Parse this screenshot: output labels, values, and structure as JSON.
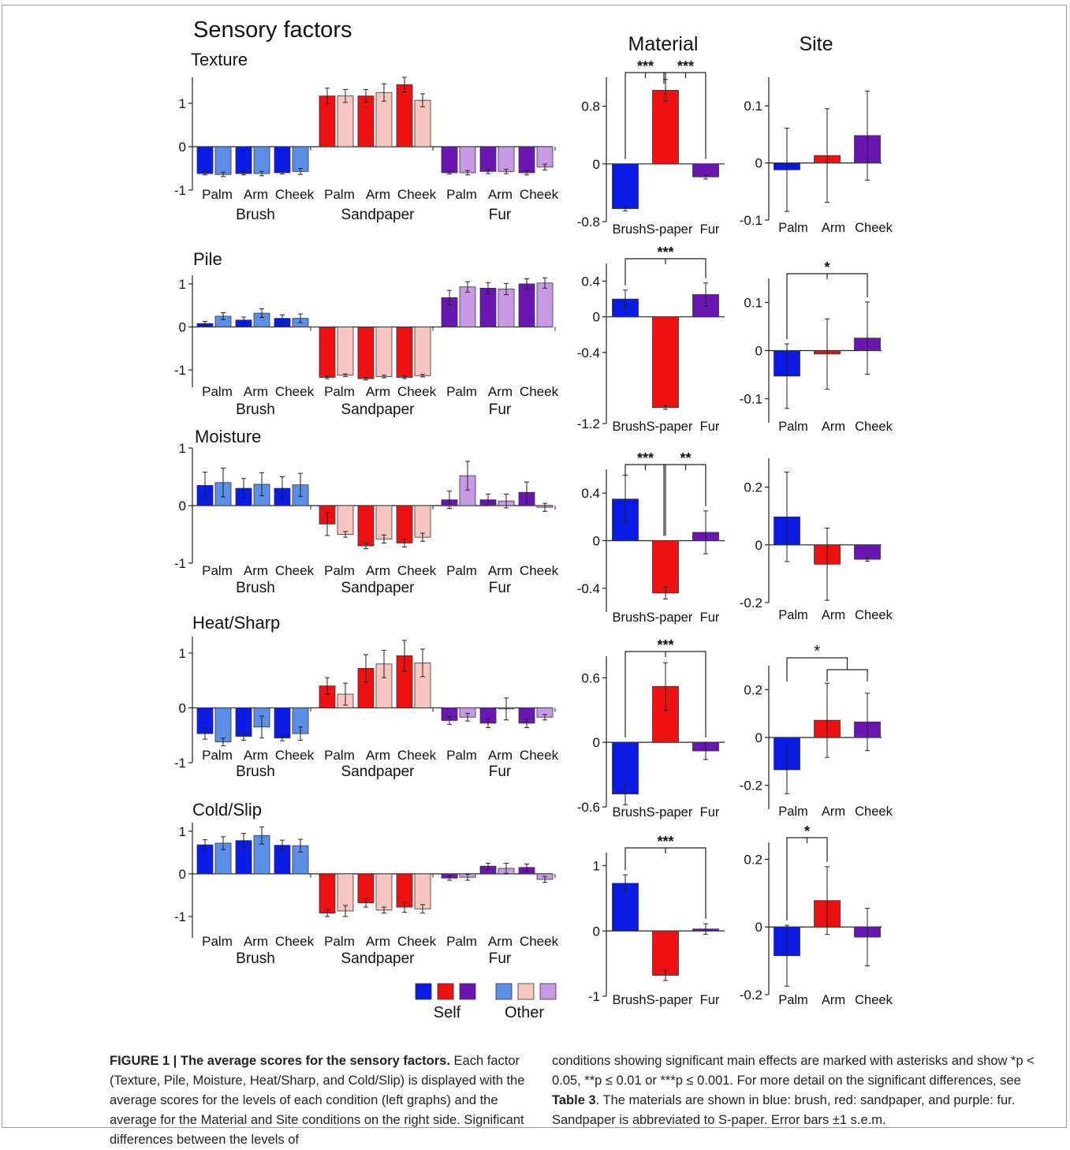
{
  "main_title": "Sensory factors",
  "column_titles": {
    "material": "Material",
    "site": "Site"
  },
  "condition_labels": {
    "sites": [
      "Palm",
      "Arm",
      "Cheek"
    ],
    "materials": [
      "Brush",
      "Sandpaper",
      "Fur"
    ]
  },
  "material_tick_labels": [
    "Brush",
    "S-paper",
    "Fur"
  ],
  "legend": {
    "self_label": "Self",
    "other_label": "Other"
  },
  "colors": {
    "brush_self": "#0a1be6",
    "brush_other": "#5b8ee6",
    "sandpaper_self": "#ee1111",
    "sandpaper_other": "#f7c6c0",
    "fur_self": "#6a16b2",
    "fur_other": "#c89ae6"
  },
  "caption": {
    "figure_label": "FIGURE 1 | The average scores for the sensory factors.",
    "left_text": "Each factor (Texture, Pile, Moisture, Heat/Sharp, and Cold/Slip) is displayed with the average scores for the levels of each condition (left graphs) and the average for the Material and Site conditions on the right side. Significant differences between the levels of",
    "right_text_1": "conditions showing significant main effects are marked with asterisks and show *p < 0.05, **p ≤ 0.01 or ***p ≤ 0.001. For more detail on the significant differences, see",
    "table_ref": "Table 3",
    "right_text_2": ". The materials are shown in blue: brush, red: sandpaper, and purple: fur. Sandpaper is abbreviated to S-paper. Error bars ±1 s.e.m."
  },
  "chart_data": [
    {
      "factor": "Texture",
      "left": {
        "type": "bar",
        "ylim": [
          -1,
          1.6
        ],
        "yticks": [
          "1",
          "0",
          "-1"
        ],
        "tick_values": [
          1,
          0,
          -1
        ],
        "series_order": [
          "Brush Palm Self",
          "Brush Palm Other",
          "Brush Arm Self",
          "Brush Arm Other",
          "Brush Cheek Self",
          "Brush Cheek Other",
          "Sandpaper Palm Self",
          "Sandpaper Palm Other",
          "Sandpaper Arm Self",
          "Sandpaper Arm Other",
          "Sandpaper Cheek Self",
          "Sandpaper Cheek Other",
          "Fur Palm Self",
          "Fur Palm Other",
          "Fur Arm Self",
          "Fur Arm Other",
          "Fur Cheek Self",
          "Fur Cheek Other"
        ],
        "values": [
          -0.62,
          -0.64,
          -0.62,
          -0.62,
          -0.6,
          -0.57,
          1.17,
          1.17,
          1.17,
          1.25,
          1.43,
          1.07,
          -0.6,
          -0.6,
          -0.57,
          -0.57,
          -0.6,
          -0.47
        ],
        "errors": [
          0.03,
          0.05,
          0.03,
          0.05,
          0.03,
          0.07,
          0.18,
          0.15,
          0.15,
          0.2,
          0.17,
          0.15,
          0.03,
          0.05,
          0.05,
          0.05,
          0.05,
          0.07
        ]
      },
      "material": {
        "type": "bar",
        "ylim": [
          -0.8,
          1.2
        ],
        "yticks": [
          "0.8",
          "0",
          "-0.8"
        ],
        "tick_values": [
          0.8,
          0,
          -0.8
        ],
        "categories": [
          "Brush",
          "S-paper",
          "Fur"
        ],
        "values": [
          -0.62,
          1.02,
          -0.18
        ],
        "errors": [
          0.03,
          0.15,
          0.03
        ],
        "significance": [
          {
            "from": 0,
            "to": 1,
            "label": "***"
          },
          {
            "from": 1,
            "to": 2,
            "label": "***"
          }
        ]
      },
      "site": {
        "type": "bar",
        "ylim": [
          -0.1,
          0.15
        ],
        "yticks": [
          "0.1",
          "0",
          "-0.1"
        ],
        "tick_values": [
          0.1,
          0,
          -0.1
        ],
        "categories": [
          "Palm",
          "Arm",
          "Cheek"
        ],
        "values": [
          -0.012,
          0.013,
          0.048
        ],
        "errors": [
          0.073,
          0.082,
          0.078
        ],
        "significance": []
      }
    },
    {
      "factor": "Pile",
      "left": {
        "type": "bar",
        "ylim": [
          -1.4,
          1.2
        ],
        "yticks": [
          "1",
          "0",
          "-1"
        ],
        "tick_values": [
          1,
          0,
          -1
        ],
        "values": [
          0.08,
          0.25,
          0.16,
          0.32,
          0.2,
          0.2,
          -1.17,
          -1.12,
          -1.2,
          -1.15,
          -1.17,
          -1.13,
          0.68,
          0.93,
          0.9,
          0.88,
          1.0,
          1.02
        ],
        "errors": [
          0.05,
          0.08,
          0.07,
          0.1,
          0.08,
          0.1,
          0.03,
          0.03,
          0.03,
          0.03,
          0.03,
          0.03,
          0.17,
          0.12,
          0.13,
          0.13,
          0.12,
          0.12
        ]
      },
      "material": {
        "type": "bar",
        "ylim": [
          -1.2,
          0.6
        ],
        "yticks": [
          "0.4",
          "0",
          "-0.4",
          "-1.2"
        ],
        "tick_values": [
          0.4,
          0,
          -0.4,
          -1.2
        ],
        "categories": [
          "Brush",
          "S-paper",
          "Fur"
        ],
        "values": [
          0.2,
          -1.02,
          0.25
        ],
        "errors": [
          0.1,
          0.02,
          0.13
        ],
        "significance": [
          {
            "from": 0,
            "to": 2,
            "label": "***"
          }
        ]
      },
      "site": {
        "type": "bar",
        "ylim": [
          -0.15,
          0.15
        ],
        "yticks": [
          "0.1",
          "0",
          "-0.1"
        ],
        "tick_values": [
          0.1,
          0,
          -0.1
        ],
        "categories": [
          "Palm",
          "Arm",
          "Cheek"
        ],
        "values": [
          -0.053,
          -0.007,
          0.026
        ],
        "errors": [
          0.067,
          0.073,
          0.075
        ],
        "significance": [
          {
            "from": 0,
            "to": 2,
            "label": "*"
          }
        ]
      }
    },
    {
      "factor": "Moisture",
      "left": {
        "type": "bar",
        "ylim": [
          -1,
          1
        ],
        "yticks": [
          "1",
          "0",
          "-1"
        ],
        "tick_values": [
          1,
          0,
          -1
        ],
        "values": [
          0.35,
          0.4,
          0.3,
          0.37,
          0.3,
          0.36,
          -0.32,
          -0.5,
          -0.7,
          -0.58,
          -0.65,
          -0.55,
          0.1,
          0.52,
          0.1,
          0.08,
          0.23,
          -0.03
        ],
        "errors": [
          0.23,
          0.25,
          0.17,
          0.2,
          0.2,
          0.2,
          0.2,
          0.05,
          0.05,
          0.07,
          0.07,
          0.07,
          0.15,
          0.25,
          0.1,
          0.12,
          0.18,
          0.07
        ]
      },
      "material": {
        "type": "bar",
        "ylim": [
          -0.6,
          0.6
        ],
        "yticks": [
          "0.4",
          "0",
          "-0.4"
        ],
        "tick_values": [
          0.4,
          0,
          -0.4
        ],
        "categories": [
          "Brush",
          "S-paper",
          "Fur"
        ],
        "values": [
          0.35,
          -0.44,
          0.07
        ],
        "errors": [
          0.2,
          0.05,
          0.18
        ],
        "significance": [
          {
            "from": 0,
            "to": 1,
            "label": "***"
          },
          {
            "from": 1,
            "to": 2,
            "label": "**"
          }
        ]
      },
      "site": {
        "type": "bar",
        "ylim": [
          -0.2,
          0.3
        ],
        "yticks": [
          "0.2",
          "0",
          "-0.2"
        ],
        "tick_values": [
          0.2,
          0,
          -0.2
        ],
        "categories": [
          "Palm",
          "Arm",
          "Cheek"
        ],
        "values": [
          0.097,
          -0.067,
          -0.05
        ],
        "errors": [
          0.155,
          0.125,
          0.007
        ],
        "significance": []
      }
    },
    {
      "factor": "Heat/Sharp",
      "left": {
        "type": "bar",
        "ylim": [
          -1,
          1.3
        ],
        "yticks": [
          "1",
          "0",
          "-1"
        ],
        "tick_values": [
          1,
          0,
          -1
        ],
        "values": [
          -0.47,
          -0.62,
          -0.52,
          -0.35,
          -0.55,
          -0.47,
          0.4,
          0.25,
          0.72,
          0.8,
          0.95,
          0.82,
          -0.23,
          -0.17,
          -0.28,
          -0.02,
          -0.28,
          -0.17
        ],
        "errors": [
          0.1,
          0.07,
          0.07,
          0.2,
          0.05,
          0.12,
          0.15,
          0.2,
          0.25,
          0.25,
          0.28,
          0.25,
          0.07,
          0.07,
          0.08,
          0.2,
          0.08,
          0.05
        ]
      },
      "material": {
        "type": "bar",
        "ylim": [
          -0.6,
          0.8
        ],
        "yticks": [
          "0.6",
          "0",
          "-0.6"
        ],
        "tick_values": [
          0.6,
          0,
          -0.6
        ],
        "categories": [
          "Brush",
          "S-paper",
          "Fur"
        ],
        "values": [
          -0.48,
          0.52,
          -0.08
        ],
        "errors": [
          0.1,
          0.22,
          0.08
        ],
        "significance": [
          {
            "from": 0,
            "to": 2,
            "label": "***"
          }
        ]
      },
      "site": {
        "type": "bar",
        "ylim": [
          -0.3,
          0.3
        ],
        "yticks": [
          "0.2",
          "0",
          "-0.2"
        ],
        "tick_values": [
          0.2,
          0,
          -0.2
        ],
        "categories": [
          "Palm",
          "Arm",
          "Cheek"
        ],
        "values": [
          -0.135,
          0.072,
          0.065
        ],
        "errors": [
          0.1,
          0.155,
          0.12
        ],
        "significance": [
          {
            "from": 0,
            "to": "1-2",
            "label": "*"
          }
        ]
      }
    },
    {
      "factor": "Cold/Slip",
      "left": {
        "type": "bar",
        "ylim": [
          -1.5,
          1.2
        ],
        "yticks": [
          "1",
          "0",
          "-1"
        ],
        "tick_values": [
          1,
          0,
          -1
        ],
        "values": [
          0.68,
          0.72,
          0.78,
          0.9,
          0.67,
          0.66,
          -0.92,
          -0.87,
          -0.68,
          -0.85,
          -0.78,
          -0.82,
          -0.1,
          -0.08,
          0.18,
          0.13,
          0.15,
          -0.13
        ],
        "errors": [
          0.12,
          0.15,
          0.17,
          0.2,
          0.12,
          0.15,
          0.08,
          0.13,
          0.1,
          0.07,
          0.12,
          0.1,
          0.05,
          0.07,
          0.07,
          0.12,
          0.08,
          0.07
        ]
      },
      "material": {
        "type": "bar",
        "ylim": [
          -1,
          1.2
        ],
        "yticks": [
          "1",
          "0",
          "-1"
        ],
        "tick_values": [
          1,
          0,
          -1
        ],
        "categories": [
          "Brush",
          "S-paper",
          "Fur"
        ],
        "values": [
          0.73,
          -0.68,
          0.03
        ],
        "errors": [
          0.13,
          0.08,
          0.08
        ],
        "significance": [
          {
            "from": 0,
            "to": 2,
            "label": "***"
          }
        ]
      },
      "site": {
        "type": "bar",
        "ylim": [
          -0.2,
          0.25
        ],
        "yticks": [
          "0.2",
          "0",
          "-0.2"
        ],
        "tick_values": [
          0.2,
          0,
          -0.2
        ],
        "categories": [
          "Palm",
          "Arm",
          "Cheek"
        ],
        "values": [
          -0.085,
          0.078,
          -0.03
        ],
        "errors": [
          0.09,
          0.1,
          0.085
        ],
        "significance": [
          {
            "from": 0,
            "to": 1,
            "label": "*"
          }
        ]
      }
    }
  ]
}
